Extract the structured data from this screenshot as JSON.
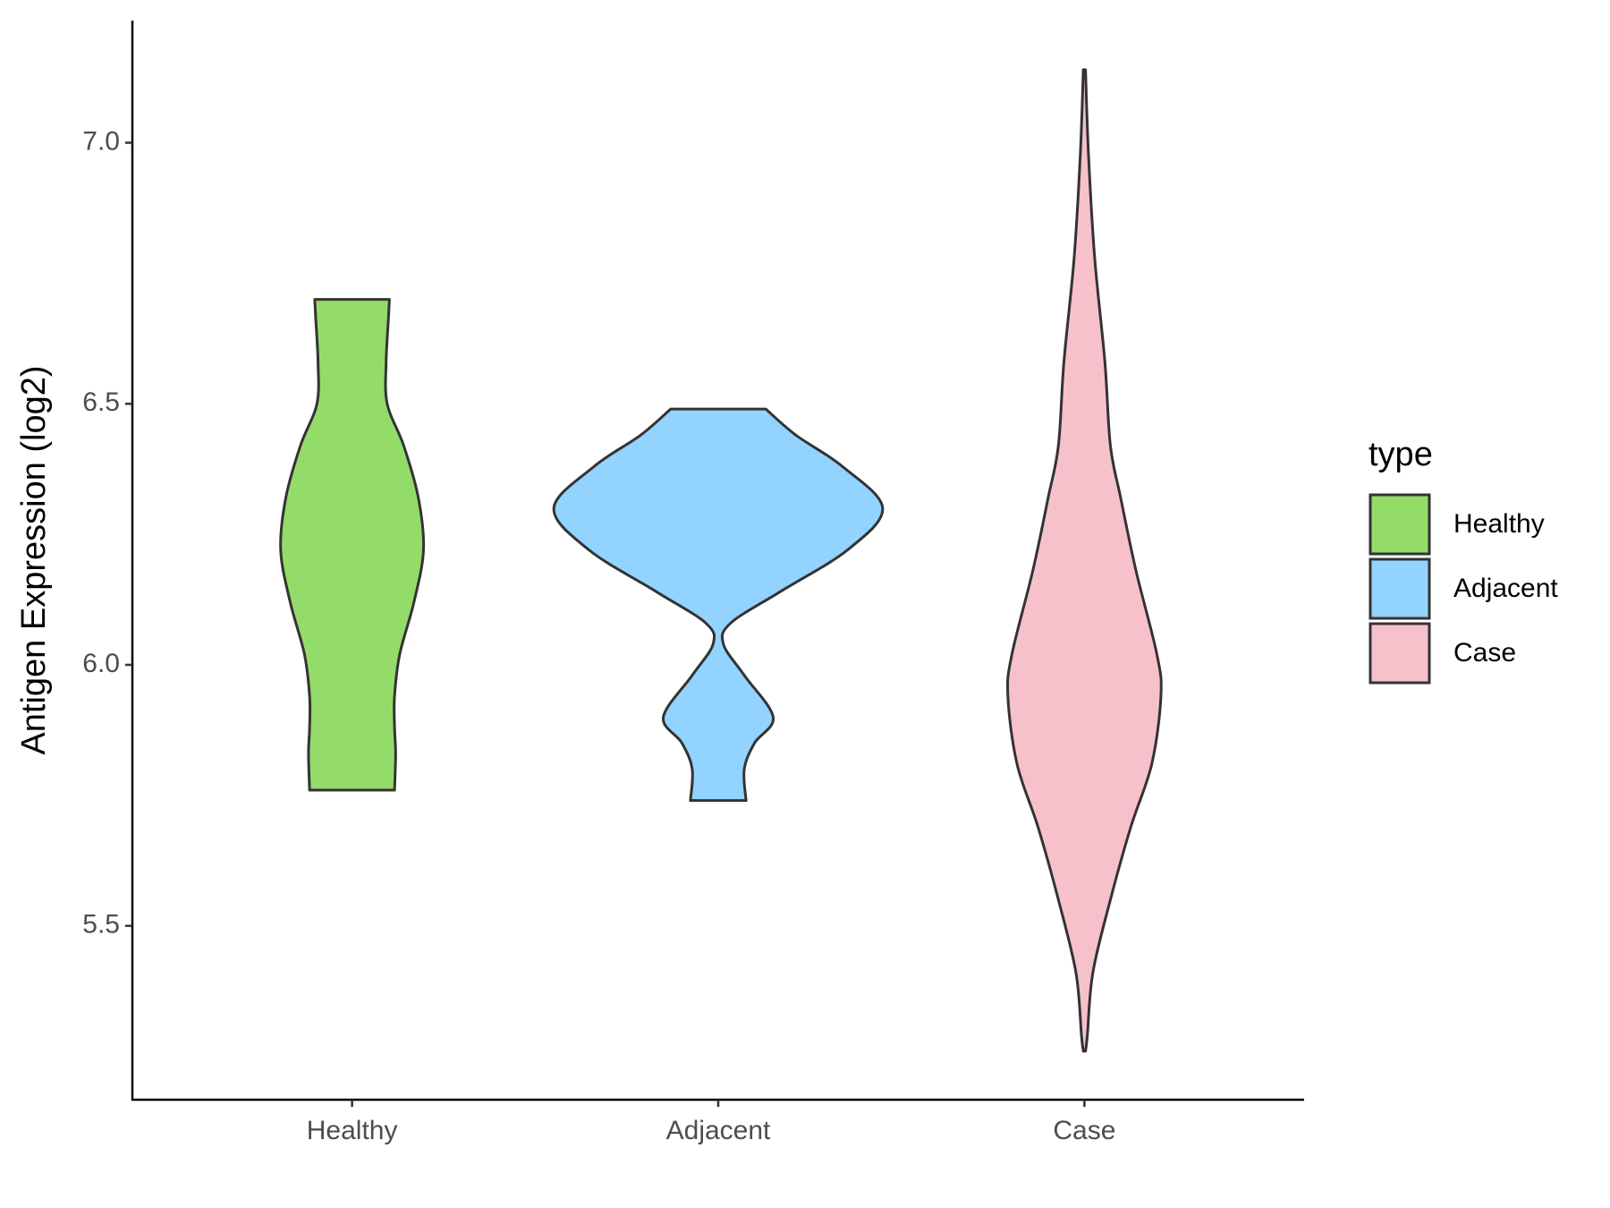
{
  "chart_data": {
    "type": "violin",
    "y_label": "Antigen Expression (log2)",
    "legend_title": "type",
    "categories": [
      "Healthy",
      "Adjacent",
      "Case"
    ],
    "ylim": [
      5.167,
      7.234
    ],
    "yticks": [
      {
        "value": 5.5,
        "label": "5.5"
      },
      {
        "value": 6.0,
        "label": "6.0"
      },
      {
        "value": 6.5,
        "label": "6.5"
      },
      {
        "value": 7.0,
        "label": "7.0"
      }
    ],
    "series": [
      {
        "name": "Healthy",
        "color": "#93dc69",
        "y": [
          6.7,
          6.66,
          6.58,
          6.5,
          6.42,
          6.32,
          6.22,
          6.12,
          6.02,
          5.94,
          5.88,
          5.83,
          5.76
        ],
        "width": [
          0.102,
          0.099,
          0.093,
          0.096,
          0.141,
          0.181,
          0.195,
          0.169,
          0.13,
          0.116,
          0.116,
          0.119,
          0.116
        ]
      },
      {
        "name": "Adjacent",
        "color": "#93d3ff",
        "y": [
          6.49,
          6.44,
          6.38,
          6.3,
          6.22,
          6.14,
          6.08,
          6.04,
          5.98,
          5.9,
          5.85,
          5.8,
          5.74
        ],
        "width": [
          0.13,
          0.212,
          0.339,
          0.449,
          0.353,
          0.169,
          0.034,
          0.014,
          0.071,
          0.15,
          0.099,
          0.071,
          0.076
        ]
      },
      {
        "name": "Case",
        "color": "#f7c1cc",
        "y": [
          7.14,
          6.98,
          6.78,
          6.58,
          6.42,
          6.32,
          6.18,
          6.02,
          5.94,
          5.81,
          5.69,
          5.55,
          5.41,
          5.29,
          5.26
        ],
        "width": [
          0.003,
          0.011,
          0.028,
          0.056,
          0.071,
          0.099,
          0.141,
          0.198,
          0.209,
          0.184,
          0.127,
          0.071,
          0.023,
          0.008,
          0.003
        ]
      }
    ]
  }
}
